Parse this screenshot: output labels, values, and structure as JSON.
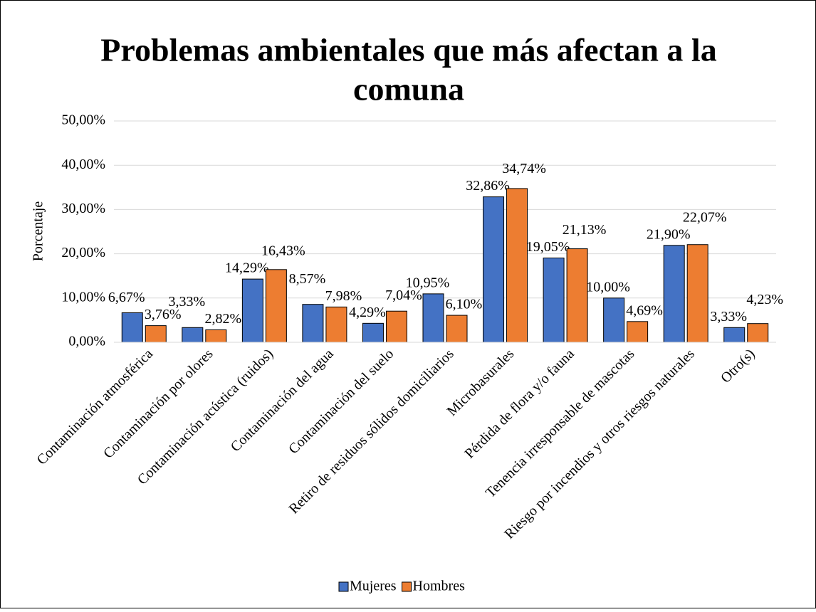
{
  "chart_data": {
    "type": "bar",
    "title": "Problemas ambientales que más afectan a la comuna",
    "y_label": "Porcentaje",
    "categories": [
      "Contaminación atmosférica",
      "Contaminación por olores",
      "Contaminación acústica (ruidos)",
      "Contaminación del agua",
      "Contaminación del suelo",
      "Retiro de residuos sólidos domiciliarios",
      "Microbasurales",
      "Pérdida de flora y/o fauna",
      "Tenencia irresponsable de mascotas",
      "Riesgo por incendios y otros riesgos naturales",
      "Otro(s)"
    ],
    "series": [
      {
        "name": "Mujeres",
        "color": "#4472c4",
        "values": [
          6.67,
          3.33,
          14.29,
          8.57,
          4.29,
          10.95,
          32.86,
          19.05,
          10.0,
          21.9,
          3.33
        ],
        "value_labels": [
          "6,67%",
          "3,33%",
          "14,29%",
          "8,57%",
          "4,29%",
          "10,95%",
          "32,86%",
          "19,05%",
          "10,00%",
          "21,90%",
          "3,33%"
        ]
      },
      {
        "name": "Hombres",
        "color": "#ed7d31",
        "values": [
          3.76,
          2.82,
          16.43,
          7.98,
          7.04,
          6.1,
          34.74,
          21.13,
          4.69,
          22.07,
          4.23
        ],
        "value_labels": [
          "3,76%",
          "2,82%",
          "16,43%",
          "7,98%",
          "7,04%",
          "6,10%",
          "34,74%",
          "21,13%",
          "4,69%",
          "22,07%",
          "4,23%"
        ]
      }
    ],
    "ylim": [
      0,
      50
    ],
    "yticks": [
      {
        "value": 0,
        "label": "0,00%"
      },
      {
        "value": 10,
        "label": "10,00%"
      },
      {
        "value": 20,
        "label": "20,00%"
      },
      {
        "value": 30,
        "label": "30,00%"
      },
      {
        "value": 40,
        "label": "40,00%"
      },
      {
        "value": 50,
        "label": "50,00%"
      }
    ],
    "grid": true,
    "legend": "bottom"
  }
}
